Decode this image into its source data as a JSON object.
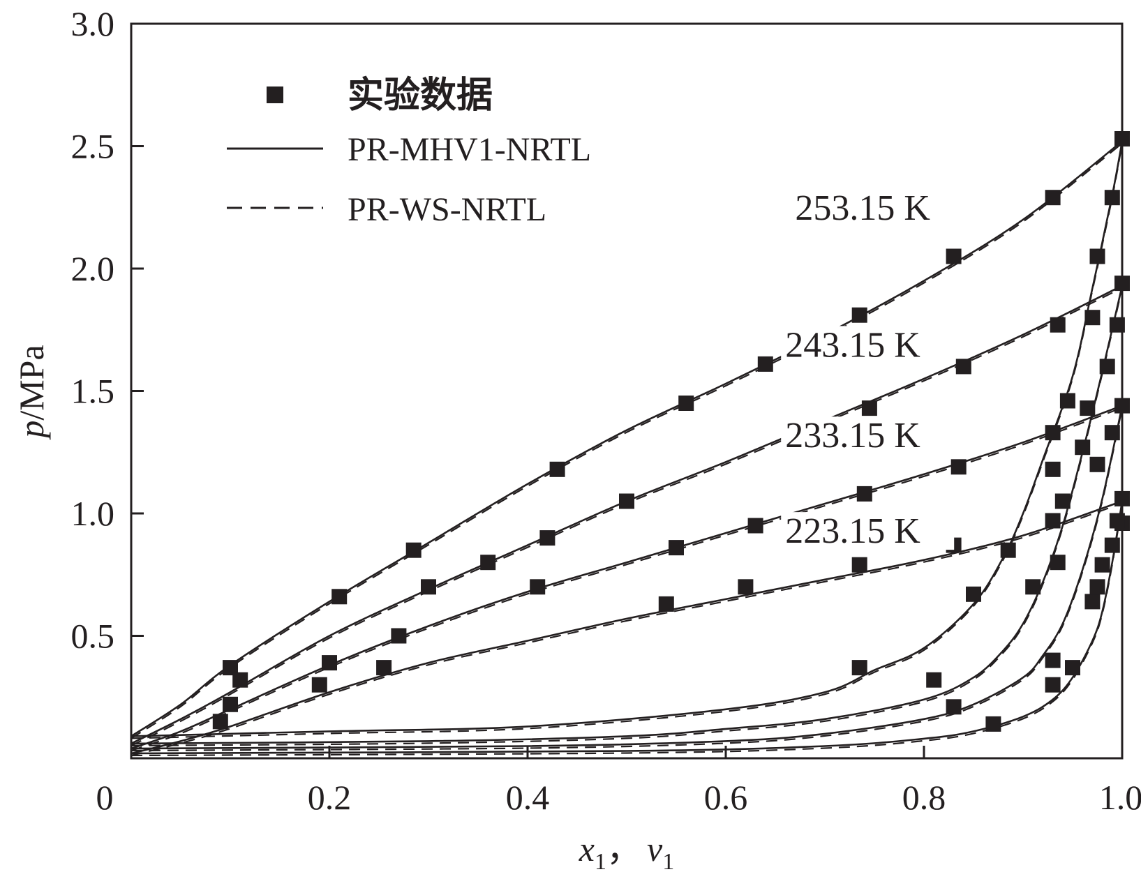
{
  "chart_data": {
    "type": "line",
    "xlabel": {
      "var1": "x",
      "sub1": "1",
      "sep": "，",
      "var2": "v",
      "sub2": "1"
    },
    "ylabel": {
      "var": "p",
      "unit": "/MPa"
    },
    "xlim": [
      0,
      1.0
    ],
    "ylim": [
      0,
      3.0
    ],
    "x_ticks": [
      {
        "value": 0,
        "label": "0"
      },
      {
        "value": 0.2,
        "label": "0.2"
      },
      {
        "value": 0.4,
        "label": "0.4"
      },
      {
        "value": 0.6,
        "label": "0.6"
      },
      {
        "value": 0.8,
        "label": "0.8"
      },
      {
        "value": 1.0,
        "label": "1.0"
      }
    ],
    "y_ticks": [
      {
        "value": 0.5,
        "label": "0.5"
      },
      {
        "value": 1.0,
        "label": "1.0"
      },
      {
        "value": 1.5,
        "label": "1.5"
      },
      {
        "value": 2.0,
        "label": "2.0"
      },
      {
        "value": 2.5,
        "label": "2.5"
      },
      {
        "value": 3.0,
        "label": "3.0"
      }
    ],
    "legend": {
      "placement": "top-left",
      "entries": [
        {
          "label": "实验数据",
          "style": "marker"
        },
        {
          "label": "PR-MHV1-NRTL",
          "style": "solid"
        },
        {
          "label": "PR-WS-NRTL",
          "style": "dashed"
        }
      ]
    },
    "grid": false,
    "colors": {
      "ink": "#231f20",
      "background": "#ffffff"
    },
    "isotherms": [
      {
        "label": "253.15 K",
        "label_anchor": [
          0.67,
          2.2
        ],
        "bubble_curve": [
          [
            0,
            0.09
          ],
          [
            0.05,
            0.22
          ],
          [
            0.1,
            0.38
          ],
          [
            0.2,
            0.64
          ],
          [
            0.3,
            0.88
          ],
          [
            0.4,
            1.12
          ],
          [
            0.5,
            1.34
          ],
          [
            0.6,
            1.53
          ],
          [
            0.7,
            1.73
          ],
          [
            0.8,
            1.95
          ],
          [
            0.9,
            2.2
          ],
          [
            1.0,
            2.52
          ]
        ],
        "dew_curve": [
          [
            0,
            0.09
          ],
          [
            0.2,
            0.11
          ],
          [
            0.4,
            0.13
          ],
          [
            0.6,
            0.2
          ],
          [
            0.7,
            0.27
          ],
          [
            0.75,
            0.36
          ],
          [
            0.8,
            0.45
          ],
          [
            0.85,
            0.63
          ],
          [
            0.88,
            0.82
          ],
          [
            0.9,
            1.0
          ],
          [
            0.92,
            1.22
          ],
          [
            0.95,
            1.56
          ],
          [
            0.97,
            1.92
          ],
          [
            0.99,
            2.3
          ],
          [
            1.0,
            2.52
          ]
        ],
        "bubble_points": [
          [
            0.1,
            0.37
          ],
          [
            0.21,
            0.66
          ],
          [
            0.285,
            0.85
          ],
          [
            0.43,
            1.18
          ],
          [
            0.56,
            1.45
          ],
          [
            0.64,
            1.61
          ],
          [
            0.735,
            1.81
          ],
          [
            0.83,
            2.05
          ],
          [
            0.93,
            2.29
          ],
          [
            1.0,
            2.53
          ]
        ],
        "dew_points": [
          [
            0.1,
            0.22
          ],
          [
            0.735,
            0.37
          ],
          [
            0.85,
            0.67
          ],
          [
            0.885,
            0.85
          ],
          [
            0.93,
            1.18
          ],
          [
            0.945,
            1.46
          ],
          [
            0.97,
            1.8
          ],
          [
            0.975,
            2.05
          ],
          [
            0.99,
            2.29
          ],
          [
            1.0,
            2.53
          ]
        ]
      },
      {
        "label": "243.15 K",
        "label_anchor": [
          0.66,
          1.64
        ],
        "bubble_curve": [
          [
            0,
            0.06
          ],
          [
            0.05,
            0.16
          ],
          [
            0.1,
            0.27
          ],
          [
            0.2,
            0.5
          ],
          [
            0.3,
            0.69
          ],
          [
            0.4,
            0.87
          ],
          [
            0.5,
            1.05
          ],
          [
            0.6,
            1.21
          ],
          [
            0.7,
            1.38
          ],
          [
            0.8,
            1.55
          ],
          [
            0.9,
            1.73
          ],
          [
            1.0,
            1.93
          ]
        ],
        "dew_curve": [
          [
            0,
            0.06
          ],
          [
            0.3,
            0.07
          ],
          [
            0.5,
            0.09
          ],
          [
            0.6,
            0.12
          ],
          [
            0.7,
            0.16
          ],
          [
            0.8,
            0.24
          ],
          [
            0.85,
            0.33
          ],
          [
            0.88,
            0.44
          ],
          [
            0.9,
            0.55
          ],
          [
            0.92,
            0.72
          ],
          [
            0.94,
            0.95
          ],
          [
            0.96,
            1.25
          ],
          [
            0.98,
            1.58
          ],
          [
            1.0,
            1.93
          ]
        ],
        "bubble_points": [
          [
            0.11,
            0.32
          ],
          [
            0.2,
            0.39
          ],
          [
            0.3,
            0.7
          ],
          [
            0.36,
            0.8
          ],
          [
            0.42,
            0.9
          ],
          [
            0.5,
            1.05
          ],
          [
            0.745,
            1.43
          ],
          [
            0.84,
            1.6
          ],
          [
            0.935,
            1.77
          ],
          [
            1.0,
            1.94
          ]
        ],
        "dew_points": [
          [
            0.81,
            0.32
          ],
          [
            0.91,
            0.7
          ],
          [
            0.93,
            0.97
          ],
          [
            0.96,
            1.27
          ],
          [
            0.965,
            1.43
          ],
          [
            0.985,
            1.6
          ],
          [
            0.995,
            1.77
          ]
        ]
      },
      {
        "label": "233.15 K",
        "label_anchor": [
          0.66,
          1.27
        ],
        "bubble_curve": [
          [
            0,
            0.04
          ],
          [
            0.05,
            0.11
          ],
          [
            0.1,
            0.2
          ],
          [
            0.2,
            0.38
          ],
          [
            0.3,
            0.54
          ],
          [
            0.4,
            0.68
          ],
          [
            0.5,
            0.8
          ],
          [
            0.6,
            0.92
          ],
          [
            0.7,
            1.04
          ],
          [
            0.8,
            1.16
          ],
          [
            0.9,
            1.29
          ],
          [
            1.0,
            1.44
          ]
        ],
        "dew_curve": [
          [
            0,
            0.04
          ],
          [
            0.4,
            0.05
          ],
          [
            0.6,
            0.07
          ],
          [
            0.7,
            0.1
          ],
          [
            0.8,
            0.16
          ],
          [
            0.85,
            0.22
          ],
          [
            0.9,
            0.33
          ],
          [
            0.92,
            0.42
          ],
          [
            0.94,
            0.55
          ],
          [
            0.96,
            0.77
          ],
          [
            0.98,
            1.06
          ],
          [
            1.0,
            1.44
          ]
        ],
        "bubble_points": [
          [
            0.09,
            0.15
          ],
          [
            0.19,
            0.3
          ],
          [
            0.27,
            0.5
          ],
          [
            0.41,
            0.7
          ],
          [
            0.55,
            0.86
          ],
          [
            0.63,
            0.95
          ],
          [
            0.74,
            1.08
          ],
          [
            0.835,
            1.19
          ],
          [
            0.93,
            1.33
          ],
          [
            1.0,
            1.44
          ]
        ],
        "dew_points": [
          [
            0.83,
            0.21
          ],
          [
            0.93,
            0.4
          ],
          [
            0.935,
            0.8
          ],
          [
            0.94,
            1.05
          ],
          [
            0.975,
            1.2
          ],
          [
            0.99,
            1.33
          ]
        ]
      },
      {
        "label": "223.15 K",
        "label_anchor": [
          0.66,
          0.88
        ],
        "bubble_curve": [
          [
            0,
            0.02
          ],
          [
            0.05,
            0.07
          ],
          [
            0.1,
            0.13
          ],
          [
            0.2,
            0.27
          ],
          [
            0.3,
            0.39
          ],
          [
            0.4,
            0.48
          ],
          [
            0.5,
            0.57
          ],
          [
            0.6,
            0.65
          ],
          [
            0.7,
            0.73
          ],
          [
            0.8,
            0.81
          ],
          [
            0.9,
            0.91
          ],
          [
            1.0,
            1.05
          ]
        ],
        "dew_curve": [
          [
            0,
            0.02
          ],
          [
            0.5,
            0.03
          ],
          [
            0.7,
            0.05
          ],
          [
            0.8,
            0.08
          ],
          [
            0.85,
            0.11
          ],
          [
            0.9,
            0.17
          ],
          [
            0.93,
            0.24
          ],
          [
            0.95,
            0.33
          ],
          [
            0.97,
            0.48
          ],
          [
            0.98,
            0.6
          ],
          [
            0.99,
            0.8
          ],
          [
            1.0,
            1.05
          ]
        ],
        "bubble_points": [
          [
            0.255,
            0.37
          ],
          [
            0.54,
            0.63
          ],
          [
            0.62,
            0.7
          ],
          [
            0.735,
            0.79
          ],
          [
            0.83,
            0.87
          ],
          [
            1.0,
            0.96
          ]
        ],
        "dew_points": [
          [
            0.87,
            0.14
          ],
          [
            0.93,
            0.3
          ],
          [
            0.95,
            0.37
          ],
          [
            0.97,
            0.64
          ],
          [
            0.975,
            0.7
          ],
          [
            0.98,
            0.79
          ],
          [
            0.99,
            0.87
          ],
          [
            0.995,
            0.97
          ],
          [
            1.0,
            1.06
          ]
        ]
      }
    ]
  }
}
